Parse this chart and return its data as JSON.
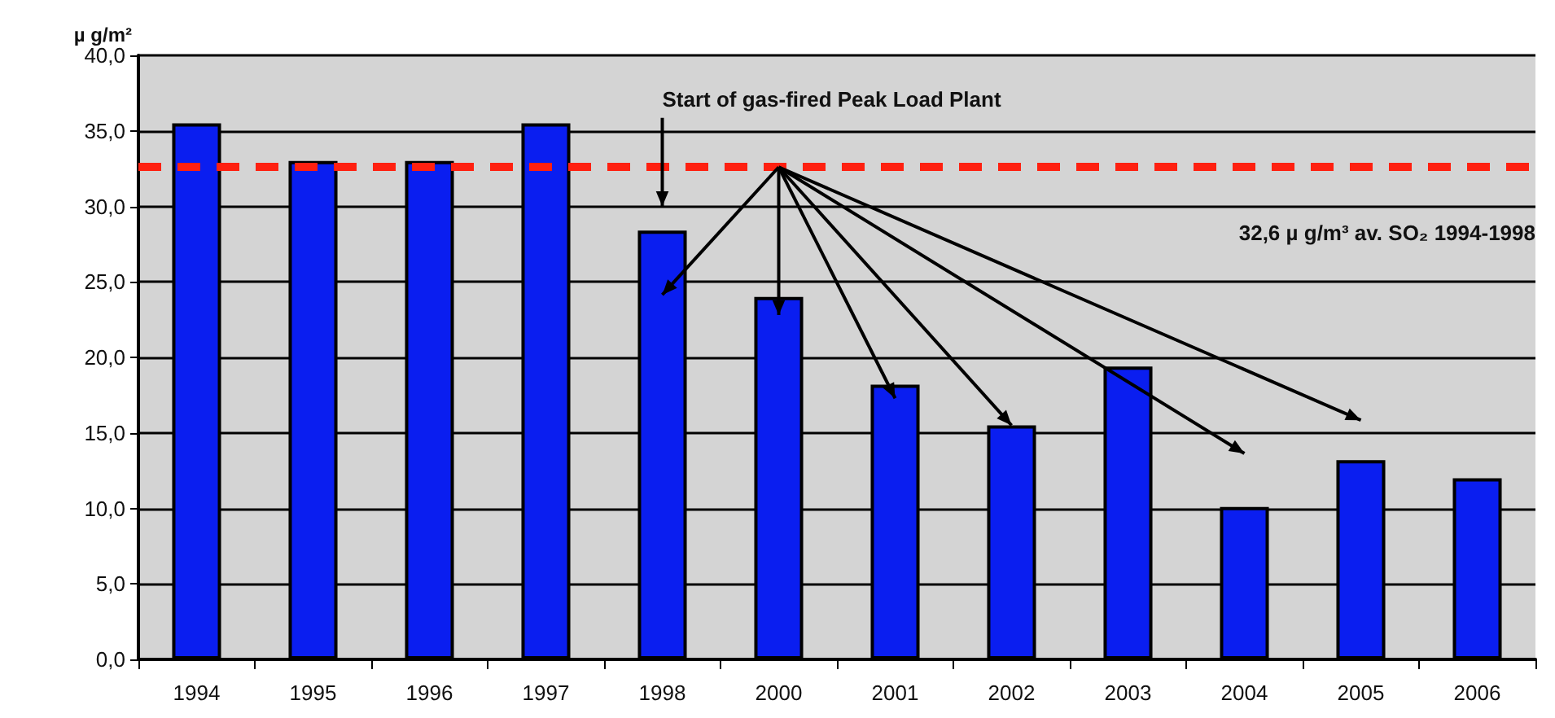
{
  "chart_data": {
    "type": "bar",
    "ylabel": "µ g/m²",
    "categories": [
      "1994",
      "1995",
      "1996",
      "1997",
      "1998",
      "2000",
      "2001",
      "2002",
      "2003",
      "2004",
      "2005",
      "2006"
    ],
    "values": [
      35.5,
      33.0,
      33.0,
      35.5,
      28.4,
      24.0,
      18.2,
      15.5,
      19.4,
      10.1,
      13.2,
      12.0
    ],
    "color": "#0a1ef0",
    "ylim": [
      0,
      40
    ],
    "yticks": [
      {
        "value": 0,
        "label": "0,0"
      },
      {
        "value": 5,
        "label": "5,0"
      },
      {
        "value": 10,
        "label": "10,0"
      },
      {
        "value": 15,
        "label": "15,0"
      },
      {
        "value": 20,
        "label": "20,0"
      },
      {
        "value": 25,
        "label": "25,0"
      },
      {
        "value": 30,
        "label": "30,0"
      },
      {
        "value": 35,
        "label": "35,0"
      },
      {
        "value": 40,
        "label": "40,0"
      }
    ],
    "grid": "y",
    "ref_lines": [
      {
        "axis": "y",
        "value": 32.6,
        "label": "32,6 µ g/m³ av. SO₂ 1994-1998",
        "color": "#ff2010",
        "line_style": "dashed"
      }
    ],
    "annotations": [
      "Start of gas-fired Peak Load Plant"
    ]
  }
}
